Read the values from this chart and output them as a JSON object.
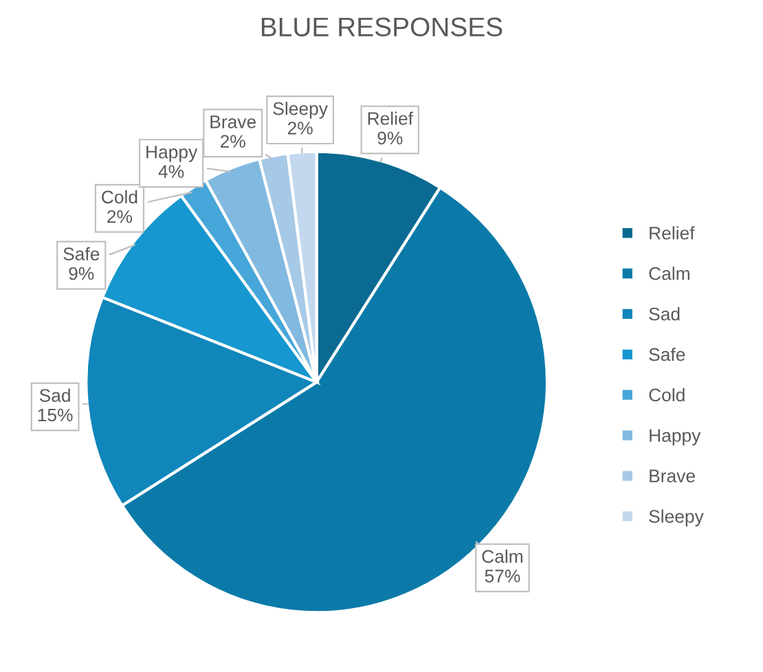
{
  "chart_data": {
    "type": "pie",
    "title": "BLUE RESPONSES",
    "categories": [
      "Relief",
      "Calm",
      "Sad",
      "Safe",
      "Cold",
      "Happy",
      "Brave",
      "Sleepy"
    ],
    "values": [
      9,
      57,
      15,
      9,
      2,
      4,
      2,
      2
    ],
    "colors": [
      "#0a6a91",
      "#0b7aa8",
      "#1086bb",
      "#1697cf",
      "#46a6d9",
      "#82b9e0",
      "#a6c9e7",
      "#c3d8ee"
    ],
    "value_labels": [
      "9%",
      "57%",
      "15%",
      "9%",
      "2%",
      "4%",
      "2%",
      "2%"
    ],
    "legend": "right"
  }
}
